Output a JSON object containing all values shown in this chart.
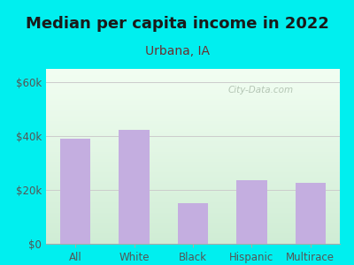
{
  "title": "Median per capita income in 2022",
  "subtitle": "Urbana, IA",
  "categories": [
    "All",
    "White",
    "Black",
    "Hispanic",
    "Multirace"
  ],
  "values": [
    39000,
    42500,
    15000,
    23500,
    22500
  ],
  "bar_color": "#c4aee0",
  "title_fontsize": 13,
  "subtitle_fontsize": 10,
  "tick_label_fontsize": 8.5,
  "background_outer": "#00efef",
  "ylim": [
    0,
    65000
  ],
  "yticks": [
    0,
    20000,
    40000,
    60000
  ],
  "ytick_labels": [
    "$0",
    "$20k",
    "$40k",
    "$60k"
  ],
  "watermark": "City-Data.com",
  "title_color": "#1a1a1a",
  "subtitle_color": "#6b3030",
  "tick_color": "#555555",
  "grid_color": "#cccccc",
  "plot_bg_top": "#d8eeda",
  "plot_bg_bottom": "#f5fff5"
}
